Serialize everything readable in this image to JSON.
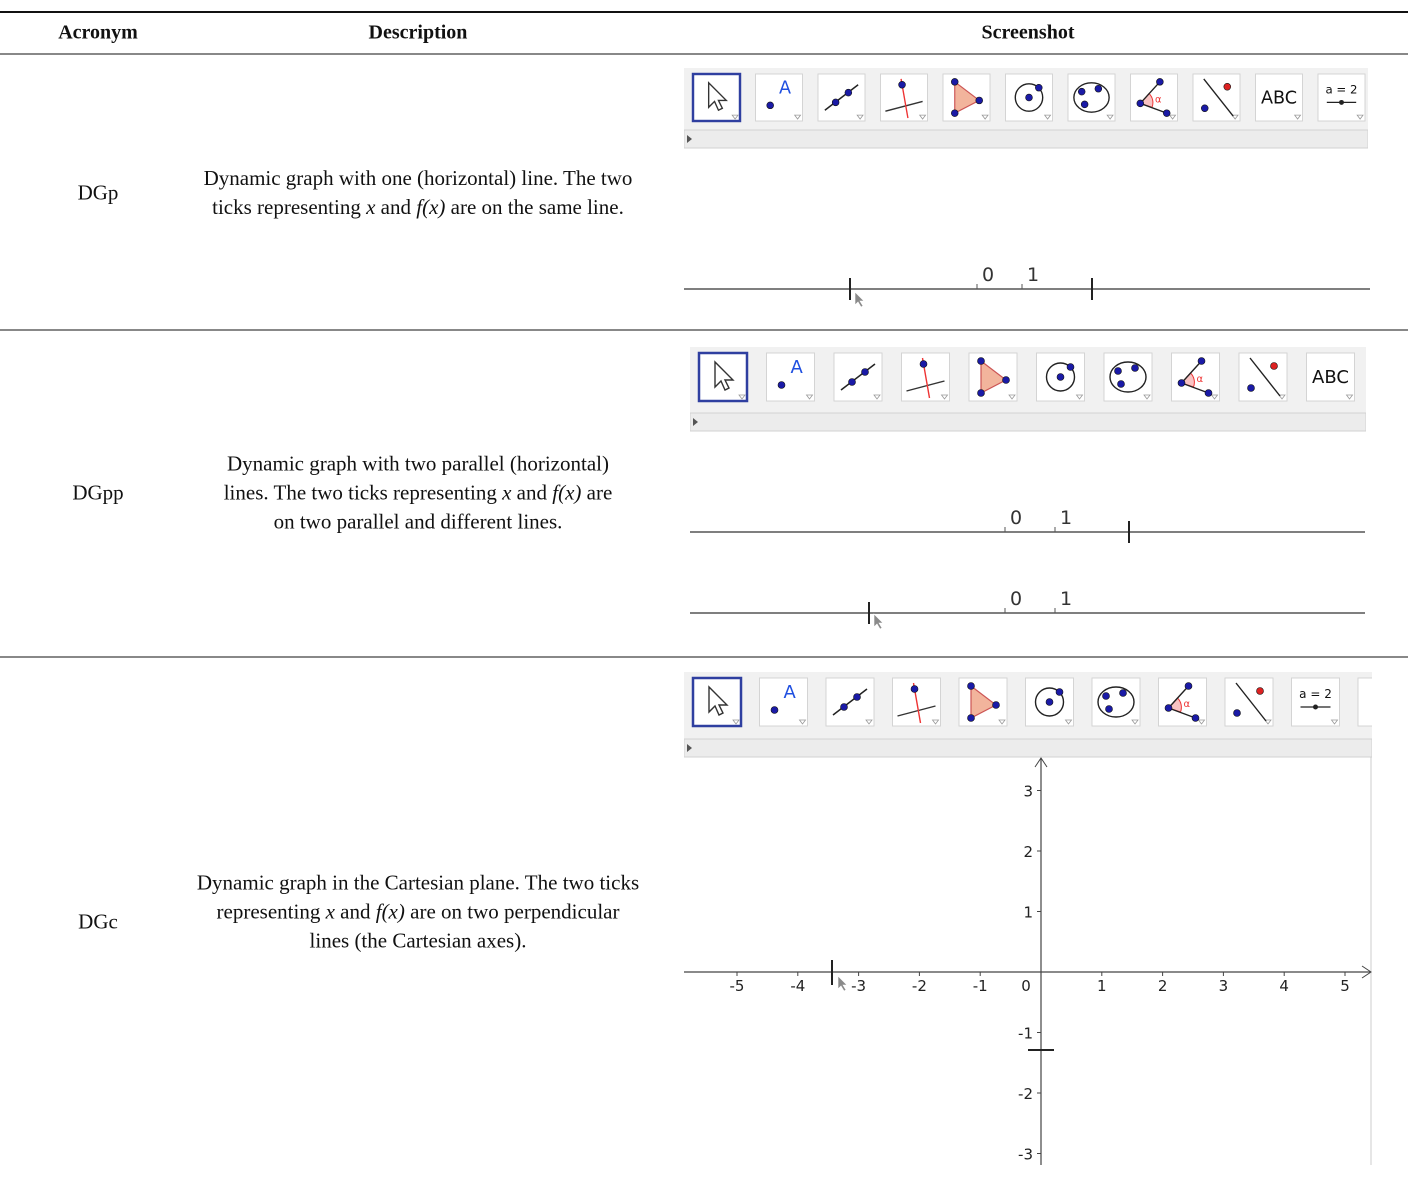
{
  "table": {
    "headers": [
      "Acronym",
      "Description",
      "Screenshot"
    ],
    "rows": [
      {
        "acronym": "DGp",
        "description": [
          "Dynamic graph with one (horizontal) line. The two ticks representing ",
          "x",
          " and ",
          "f(x)",
          " are on the same line."
        ]
      },
      {
        "acronym": "DGpp",
        "description": [
          "Dynamic graph with two parallel (horizontal) lines. The two ticks representing ",
          "x",
          " and ",
          "f(x)",
          " are on two parallel and different lines."
        ]
      },
      {
        "acronym": "DGc",
        "description": [
          "Dynamic graph in the Cartesian plane. The two ticks representing ",
          "x",
          " and ",
          "f(x)",
          " are on two perpendicular lines (the Cartesian axes)."
        ]
      }
    ]
  },
  "screenshots": [
    {
      "toolbar": {
        "point": "A",
        "angle": "α",
        "text": "ABC",
        "slider": "a = 2"
      },
      "number_lines": [
        {
          "labels": [
            0,
            1
          ]
        }
      ]
    },
    {
      "toolbar": {
        "point": "A",
        "angle": "α",
        "text": "ABC"
      },
      "number_lines": [
        {
          "labels": [
            0,
            1
          ]
        },
        {
          "labels": [
            0,
            1
          ]
        }
      ]
    },
    {
      "toolbar": {
        "point": "A",
        "angle": "α",
        "slider": "a = 2"
      },
      "x_axis_labels": [
        -5,
        -4,
        -3,
        -2,
        -1,
        0,
        1,
        2,
        3,
        4,
        5
      ],
      "y_axis_labels": [
        3,
        2,
        1,
        -1,
        -2,
        -3
      ]
    }
  ]
}
